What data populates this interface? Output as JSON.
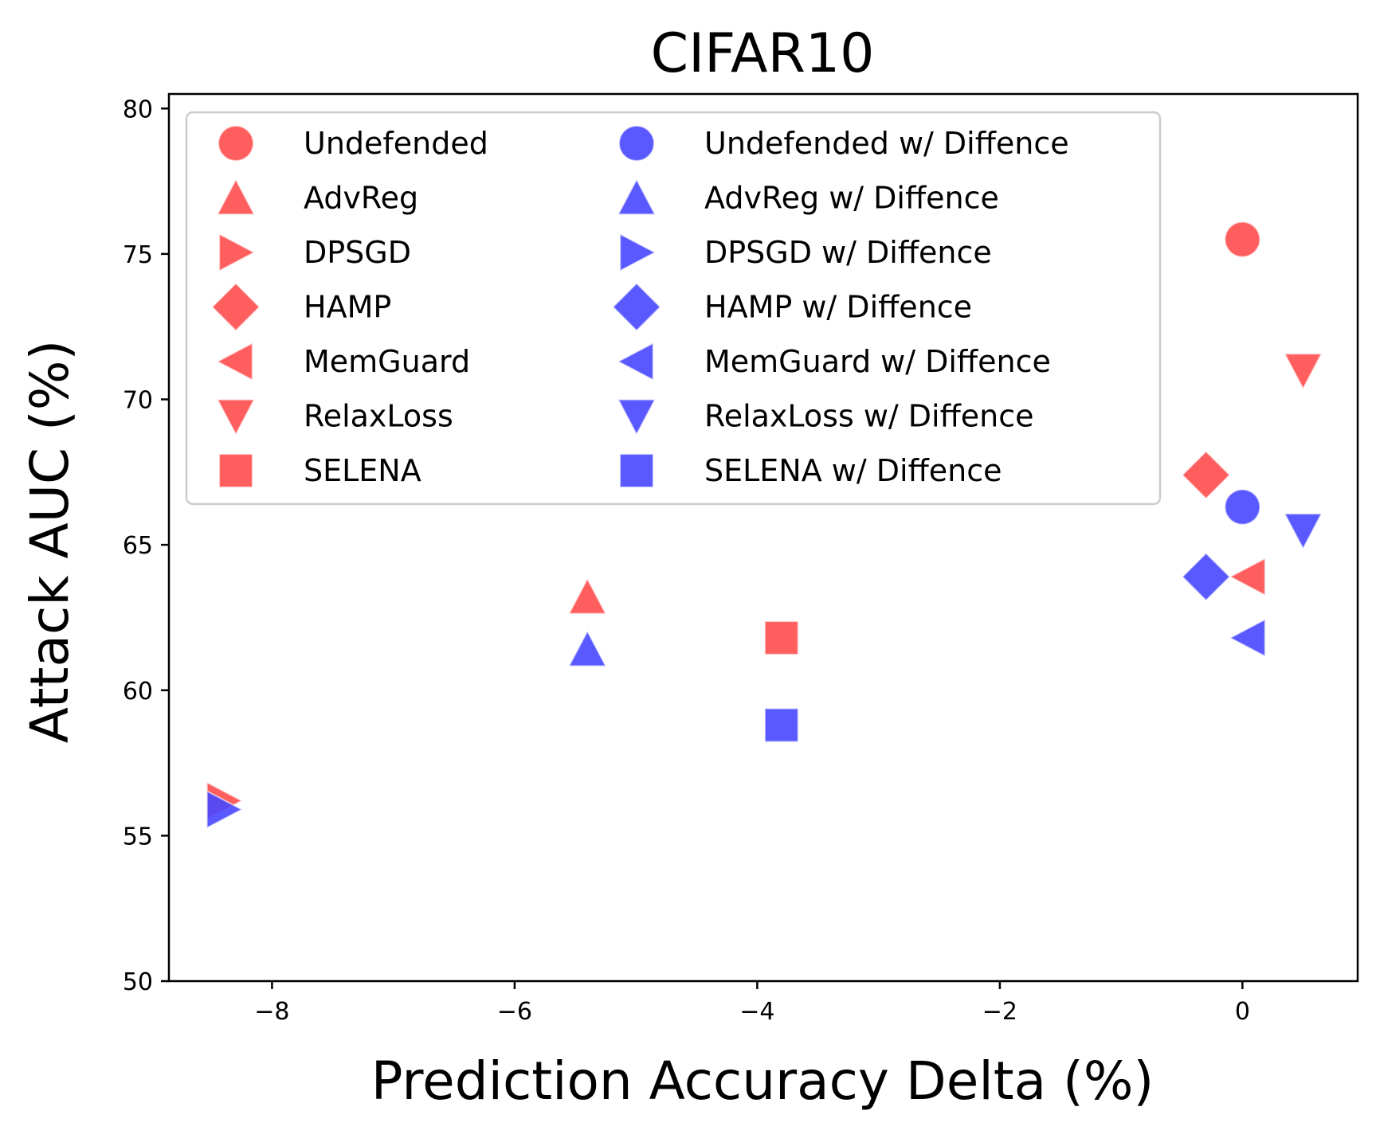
{
  "chart_data": {
    "type": "scatter",
    "title": "CIFAR10",
    "xlabel": "Prediction Accuracy Delta (%)",
    "ylabel": "Attack AUC (%)",
    "xlim": [
      -8.85,
      0.95
    ],
    "ylim": [
      50,
      80.5
    ],
    "xticks": [
      -8,
      -6,
      -4,
      -2,
      0
    ],
    "xtick_labels": [
      "−8",
      "−6",
      "−4",
      "−2",
      "0"
    ],
    "yticks": [
      50,
      55,
      60,
      65,
      70,
      75,
      80
    ],
    "ytick_labels": [
      "50",
      "55",
      "60",
      "65",
      "70",
      "75",
      "80"
    ],
    "grid": false,
    "legend_position": "top-left",
    "legend_columns": 2,
    "colors": {
      "undefended": "#ff4d4d",
      "diffence": "#4747ff"
    },
    "series": [
      {
        "name": "Undefended",
        "marker": "circle",
        "color_key": "undefended",
        "points": [
          {
            "x": 0.0,
            "y": 75.5
          }
        ]
      },
      {
        "name": "AdvReg",
        "marker": "triangle-up",
        "color_key": "undefended",
        "points": [
          {
            "x": -5.4,
            "y": 63.2
          }
        ]
      },
      {
        "name": "DPSGD",
        "marker": "triangle-right",
        "color_key": "undefended",
        "points": [
          {
            "x": -8.4,
            "y": 56.2
          }
        ]
      },
      {
        "name": "HAMP",
        "marker": "diamond",
        "color_key": "undefended",
        "points": [
          {
            "x": -0.3,
            "y": 67.4
          }
        ]
      },
      {
        "name": "MemGuard",
        "marker": "triangle-left",
        "color_key": "undefended",
        "points": [
          {
            "x": 0.05,
            "y": 63.9
          }
        ]
      },
      {
        "name": "RelaxLoss",
        "marker": "triangle-down",
        "color_key": "undefended",
        "points": [
          {
            "x": 0.5,
            "y": 71.0
          }
        ]
      },
      {
        "name": "SELENA",
        "marker": "square",
        "color_key": "undefended",
        "points": [
          {
            "x": -3.8,
            "y": 61.8
          }
        ]
      },
      {
        "name": "Undefended w/ Diffence",
        "marker": "circle",
        "color_key": "diffence",
        "points": [
          {
            "x": 0.0,
            "y": 66.3
          }
        ]
      },
      {
        "name": "AdvReg w/ Diffence",
        "marker": "triangle-up",
        "color_key": "diffence",
        "points": [
          {
            "x": -5.4,
            "y": 61.4
          }
        ]
      },
      {
        "name": "DPSGD w/ Diffence",
        "marker": "triangle-right",
        "color_key": "diffence",
        "points": [
          {
            "x": -8.4,
            "y": 55.9
          }
        ]
      },
      {
        "name": "HAMP w/ Diffence",
        "marker": "diamond",
        "color_key": "diffence",
        "points": [
          {
            "x": -0.3,
            "y": 63.9
          }
        ]
      },
      {
        "name": "MemGuard w/ Diffence",
        "marker": "triangle-left",
        "color_key": "diffence",
        "points": [
          {
            "x": 0.05,
            "y": 61.8
          }
        ]
      },
      {
        "name": "RelaxLoss w/ Diffence",
        "marker": "triangle-down",
        "color_key": "diffence",
        "points": [
          {
            "x": 0.5,
            "y": 65.5
          }
        ]
      },
      {
        "name": "SELENA w/ Diffence",
        "marker": "square",
        "color_key": "diffence",
        "points": [
          {
            "x": -3.8,
            "y": 58.8
          }
        ]
      }
    ]
  }
}
